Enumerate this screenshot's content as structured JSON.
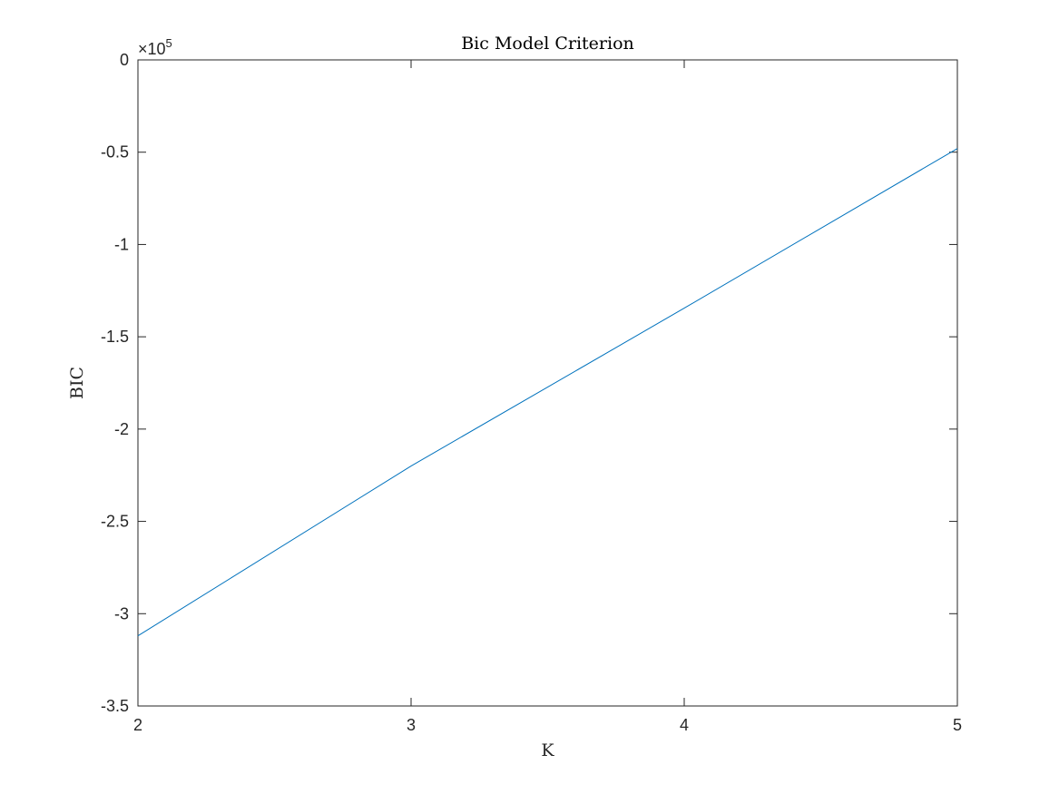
{
  "chart_data": {
    "type": "line",
    "title": "Bic Model Criterion",
    "xlabel": "K",
    "ylabel": "BIC",
    "x": [
      2,
      3,
      4,
      5
    ],
    "series": [
      {
        "values": [
          -312000,
          -220000,
          -134500,
          -48000
        ],
        "color": "#0072BD"
      }
    ],
    "xlim": [
      2,
      5
    ],
    "ylim": [
      -350000,
      0
    ],
    "xticks": [
      2,
      3,
      4,
      5
    ],
    "xtick_labels": [
      "2",
      "3",
      "4",
      "5"
    ],
    "yticks": [
      -350000,
      -300000,
      -250000,
      -200000,
      -150000,
      -100000,
      -50000,
      0
    ],
    "ytick_labels": [
      "-3.5",
      "-3",
      "-2.5",
      "-2",
      "-1.5",
      "-1",
      "-0.5",
      "0"
    ],
    "y_exponent": {
      "prefix": "×10",
      "power": "5"
    },
    "grid": false,
    "box": true
  }
}
